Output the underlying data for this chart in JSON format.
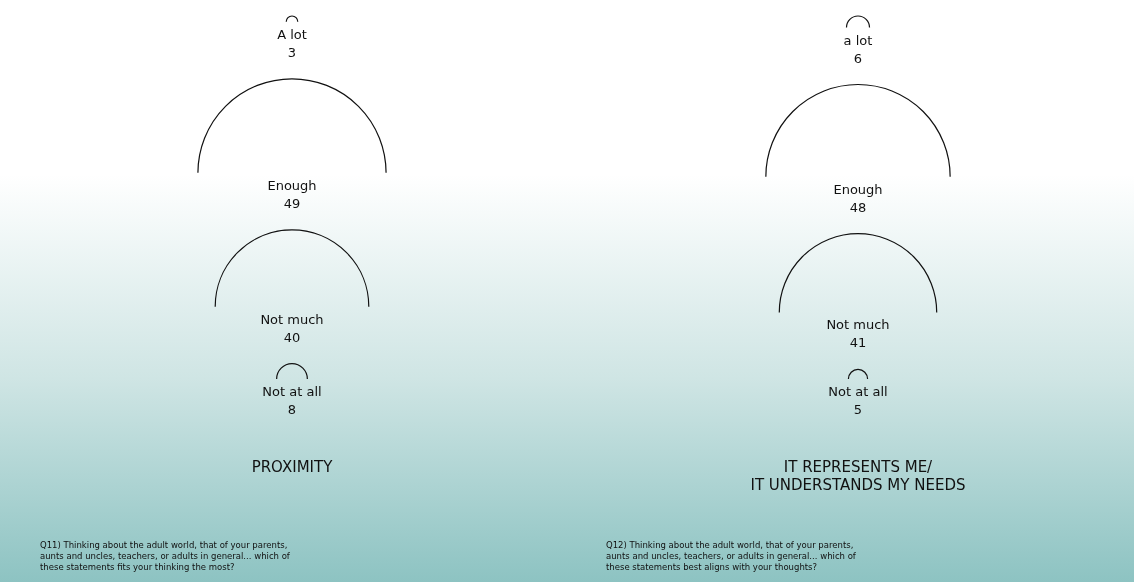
{
  "chart_data": [
    {
      "type": "other",
      "title": "PROXIMITY",
      "categories": [
        "A lot",
        "Enough",
        "Not much",
        "Not at all"
      ],
      "values": [
        3,
        49,
        40,
        8
      ],
      "data_labels": true,
      "annotations": [
        "Q11) Thinking about the adult world, that of your parents, aunts and uncles, teachers, or adults in general... which of these statements fits your thinking the most?"
      ]
    },
    {
      "type": "other",
      "title": "IT REPRESENTS ME/\nIT UNDERSTANDS MY NEEDS",
      "categories": [
        "a lot",
        "Enough",
        "Not much",
        "Not at all"
      ],
      "values": [
        6,
        48,
        41,
        5
      ],
      "data_labels": true,
      "annotations": [
        "Q12) Thinking about the adult world, that of your parents, aunts and uncles, teachers, or adults in general... which of these statements best aligns with your thoughts?"
      ]
    }
  ]
}
